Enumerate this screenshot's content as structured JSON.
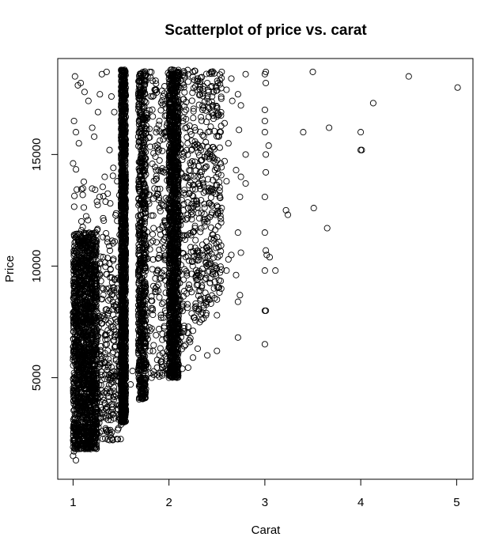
{
  "chart_data": {
    "type": "scatter",
    "title": "Scatterplot of price vs. carat",
    "xlabel": "Carat",
    "ylabel": "Price",
    "xlim": [
      0.84,
      5.17
    ],
    "ylim": [
      450,
      19300
    ],
    "x_ticks": [
      1,
      2,
      3,
      4,
      5
    ],
    "y_ticks": [
      5000,
      10000,
      15000
    ],
    "grid": false,
    "marker": "open-circle",
    "color": "#000000",
    "description_of_density": [
      {
        "x_range": [
          1.0,
          1.25
        ],
        "y_range": [
          1800,
          11500
        ],
        "level": "very-dense"
      },
      {
        "x_range": [
          1.5,
          1.55
        ],
        "y_range": [
          3000,
          18800
        ],
        "level": "very-dense"
      },
      {
        "x_range": [
          1.68,
          1.76
        ],
        "y_range": [
          4000,
          18800
        ],
        "level": "dense"
      },
      {
        "x_range": [
          2.0,
          2.1
        ],
        "y_range": [
          5000,
          18800
        ],
        "level": "very-dense"
      }
    ],
    "points": [
      {
        "x": 1.01,
        "y": 1700
      },
      {
        "x": 1.03,
        "y": 1300
      },
      {
        "x": 1.0,
        "y": 1500
      },
      {
        "x": 1.02,
        "y": 2050
      },
      {
        "x": 1.05,
        "y": 2200
      },
      {
        "x": 1.1,
        "y": 2400
      },
      {
        "x": 1.2,
        "y": 2450
      },
      {
        "x": 1.3,
        "y": 2600
      },
      {
        "x": 1.25,
        "y": 2500
      },
      {
        "x": 1.4,
        "y": 3800
      },
      {
        "x": 1.45,
        "y": 4200
      },
      {
        "x": 1.36,
        "y": 4500
      },
      {
        "x": 1.5,
        "y": 2900
      },
      {
        "x": 1.51,
        "y": 3100
      },
      {
        "x": 1.55,
        "y": 3500
      },
      {
        "x": 1.6,
        "y": 4700
      },
      {
        "x": 1.62,
        "y": 5300
      },
      {
        "x": 1.7,
        "y": 4900
      },
      {
        "x": 1.75,
        "y": 5300
      },
      {
        "x": 1.82,
        "y": 5000
      },
      {
        "x": 1.9,
        "y": 5050
      },
      {
        "x": 1.93,
        "y": 5600
      },
      {
        "x": 1.98,
        "y": 5200
      },
      {
        "x": 2.0,
        "y": 5000
      },
      {
        "x": 2.03,
        "y": 5500
      },
      {
        "x": 2.1,
        "y": 5600
      },
      {
        "x": 2.14,
        "y": 5400
      },
      {
        "x": 2.2,
        "y": 5450
      },
      {
        "x": 2.25,
        "y": 5900
      },
      {
        "x": 2.3,
        "y": 6300
      },
      {
        "x": 2.4,
        "y": 6000
      },
      {
        "x": 2.5,
        "y": 6200
      },
      {
        "x": 2.5,
        "y": 7800
      },
      {
        "x": 2.5,
        "y": 8500
      },
      {
        "x": 2.47,
        "y": 9000
      },
      {
        "x": 2.6,
        "y": 9800
      },
      {
        "x": 2.65,
        "y": 10500
      },
      {
        "x": 2.7,
        "y": 9600
      },
      {
        "x": 2.72,
        "y": 8400
      },
      {
        "x": 2.74,
        "y": 8700
      },
      {
        "x": 2.72,
        "y": 6800
      },
      {
        "x": 2.75,
        "y": 10600
      },
      {
        "x": 2.72,
        "y": 11500
      },
      {
        "x": 2.74,
        "y": 13100
      },
      {
        "x": 2.75,
        "y": 14000
      },
      {
        "x": 2.8,
        "y": 13700
      },
      {
        "x": 2.8,
        "y": 15000
      },
      {
        "x": 2.73,
        "y": 16100
      },
      {
        "x": 2.75,
        "y": 17200
      },
      {
        "x": 2.72,
        "y": 17700
      },
      {
        "x": 2.8,
        "y": 18600
      },
      {
        "x": 2.65,
        "y": 18400
      },
      {
        "x": 2.7,
        "y": 14300
      },
      {
        "x": 2.6,
        "y": 13800
      },
      {
        "x": 2.55,
        "y": 12600
      },
      {
        "x": 2.62,
        "y": 10300
      },
      {
        "x": 2.58,
        "y": 14700
      },
      {
        "x": 3.0,
        "y": 6500
      },
      {
        "x": 3.01,
        "y": 8000
      },
      {
        "x": 3.0,
        "y": 8000
      },
      {
        "x": 3.0,
        "y": 9800
      },
      {
        "x": 3.02,
        "y": 10500
      },
      {
        "x": 3.01,
        "y": 10700
      },
      {
        "x": 3.05,
        "y": 10400
      },
      {
        "x": 3.11,
        "y": 9800
      },
      {
        "x": 3.0,
        "y": 11500
      },
      {
        "x": 3.0,
        "y": 13100
      },
      {
        "x": 3.01,
        "y": 14200
      },
      {
        "x": 3.01,
        "y": 15000
      },
      {
        "x": 3.04,
        "y": 15400
      },
      {
        "x": 3.0,
        "y": 16000
      },
      {
        "x": 3.0,
        "y": 16500
      },
      {
        "x": 3.0,
        "y": 17000
      },
      {
        "x": 3.01,
        "y": 18200
      },
      {
        "x": 3.0,
        "y": 18600
      },
      {
        "x": 3.01,
        "y": 18700
      },
      {
        "x": 3.22,
        "y": 12500
      },
      {
        "x": 3.24,
        "y": 12300
      },
      {
        "x": 3.4,
        "y": 16000
      },
      {
        "x": 3.5,
        "y": 18700
      },
      {
        "x": 3.51,
        "y": 12600
      },
      {
        "x": 3.65,
        "y": 11700
      },
      {
        "x": 3.67,
        "y": 16200
      },
      {
        "x": 4.0,
        "y": 15200
      },
      {
        "x": 4.01,
        "y": 15200
      },
      {
        "x": 4.0,
        "y": 16000
      },
      {
        "x": 4.13,
        "y": 17300
      },
      {
        "x": 4.5,
        "y": 18500
      },
      {
        "x": 5.01,
        "y": 18000
      },
      {
        "x": 1.01,
        "y": 16500
      },
      {
        "x": 1.02,
        "y": 18500
      },
      {
        "x": 1.05,
        "y": 18100
      },
      {
        "x": 1.08,
        "y": 18200
      },
      {
        "x": 1.12,
        "y": 17800
      },
      {
        "x": 1.16,
        "y": 17400
      },
      {
        "x": 1.2,
        "y": 16200
      },
      {
        "x": 1.03,
        "y": 16000
      },
      {
        "x": 1.06,
        "y": 15500
      },
      {
        "x": 1.0,
        "y": 14600
      },
      {
        "x": 1.22,
        "y": 15800
      },
      {
        "x": 1.26,
        "y": 16900
      },
      {
        "x": 1.28,
        "y": 17700
      },
      {
        "x": 1.3,
        "y": 18600
      },
      {
        "x": 1.35,
        "y": 18700
      },
      {
        "x": 1.4,
        "y": 17600
      },
      {
        "x": 1.43,
        "y": 16900
      },
      {
        "x": 1.38,
        "y": 15200
      },
      {
        "x": 1.42,
        "y": 14400
      },
      {
        "x": 1.33,
        "y": 14000
      },
      {
        "x": 1.46,
        "y": 13800
      },
      {
        "x": 1.85,
        "y": 17900
      },
      {
        "x": 1.9,
        "y": 16500
      },
      {
        "x": 1.88,
        "y": 15300
      },
      {
        "x": 1.95,
        "y": 14200
      },
      {
        "x": 1.92,
        "y": 12800
      },
      {
        "x": 1.84,
        "y": 11700
      },
      {
        "x": 1.94,
        "y": 10800
      },
      {
        "x": 1.87,
        "y": 9700
      },
      {
        "x": 1.9,
        "y": 8600
      },
      {
        "x": 1.97,
        "y": 7900
      },
      {
        "x": 1.82,
        "y": 7200
      },
      {
        "x": 1.93,
        "y": 6700
      },
      {
        "x": 1.8,
        "y": 6200
      },
      {
        "x": 1.8,
        "y": 18700
      },
      {
        "x": 1.83,
        "y": 18300
      },
      {
        "x": 2.2,
        "y": 18600
      },
      {
        "x": 2.3,
        "y": 18400
      },
      {
        "x": 2.4,
        "y": 18200
      },
      {
        "x": 2.45,
        "y": 17600
      },
      {
        "x": 2.35,
        "y": 17000
      },
      {
        "x": 2.5,
        "y": 16700
      },
      {
        "x": 2.52,
        "y": 15800
      },
      {
        "x": 2.4,
        "y": 15000
      },
      {
        "x": 2.48,
        "y": 14300
      },
      {
        "x": 2.42,
        "y": 13500
      },
      {
        "x": 2.5,
        "y": 12700
      },
      {
        "x": 2.38,
        "y": 12100
      },
      {
        "x": 2.46,
        "y": 11400
      },
      {
        "x": 2.35,
        "y": 10700
      },
      {
        "x": 2.44,
        "y": 10100
      },
      {
        "x": 2.3,
        "y": 9400
      },
      {
        "x": 2.38,
        "y": 8800
      },
      {
        "x": 2.28,
        "y": 8200
      },
      {
        "x": 2.34,
        "y": 7600
      },
      {
        "x": 2.25,
        "y": 7100
      },
      {
        "x": 2.22,
        "y": 6600
      },
      {
        "x": 2.55,
        "y": 18700
      },
      {
        "x": 2.6,
        "y": 17900
      },
      {
        "x": 2.58,
        "y": 16400
      },
      {
        "x": 2.62,
        "y": 15500
      },
      {
        "x": 2.54,
        "y": 14600
      },
      {
        "x": 2.66,
        "y": 17400
      }
    ]
  }
}
